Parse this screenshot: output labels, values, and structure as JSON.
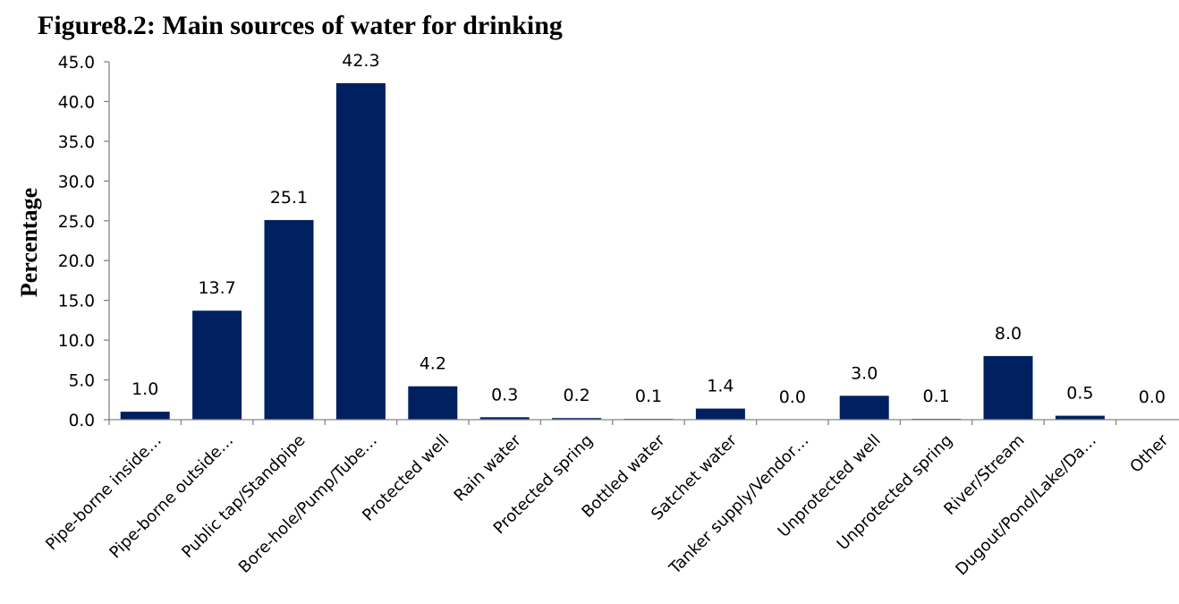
{
  "chart_data": {
    "type": "bar",
    "title": "Figure8.2: Main sources of water for drinking",
    "xlabel": "",
    "ylabel": "Percentage",
    "ylim": [
      0,
      45
    ],
    "yticks": [
      "0.0",
      "5.0",
      "10.0",
      "15.0",
      "20.0",
      "25.0",
      "30.0",
      "35.0",
      "40.0",
      "45.0"
    ],
    "grid": false,
    "legend": "none",
    "bar_color": "#002060",
    "categories": [
      "Pipe-borne inside…",
      "Pipe-borne outside…",
      "Public tap/Standpipe",
      "Bore-hole/Pump/Tube…",
      "Protected well",
      "Rain water",
      "Protected spring",
      "Bottled water",
      "Satchet water",
      "Tanker supply/Vendor…",
      "Unprotected well",
      "Unprotected spring",
      "River/Stream",
      "Dugout/Pond/Lake/Da…",
      "Other"
    ],
    "values": [
      1.0,
      13.7,
      25.1,
      42.3,
      4.2,
      0.3,
      0.2,
      0.1,
      1.4,
      0.0,
      3.0,
      0.1,
      8.0,
      0.5,
      0.0
    ],
    "data_labels": [
      "1.0",
      "13.7",
      "25.1",
      "42.3",
      "4.2",
      "0.3",
      "0.2",
      "0.1",
      "1.4",
      "0.0",
      "3.0",
      "0.1",
      "8.0",
      "0.5",
      "0.0"
    ]
  }
}
